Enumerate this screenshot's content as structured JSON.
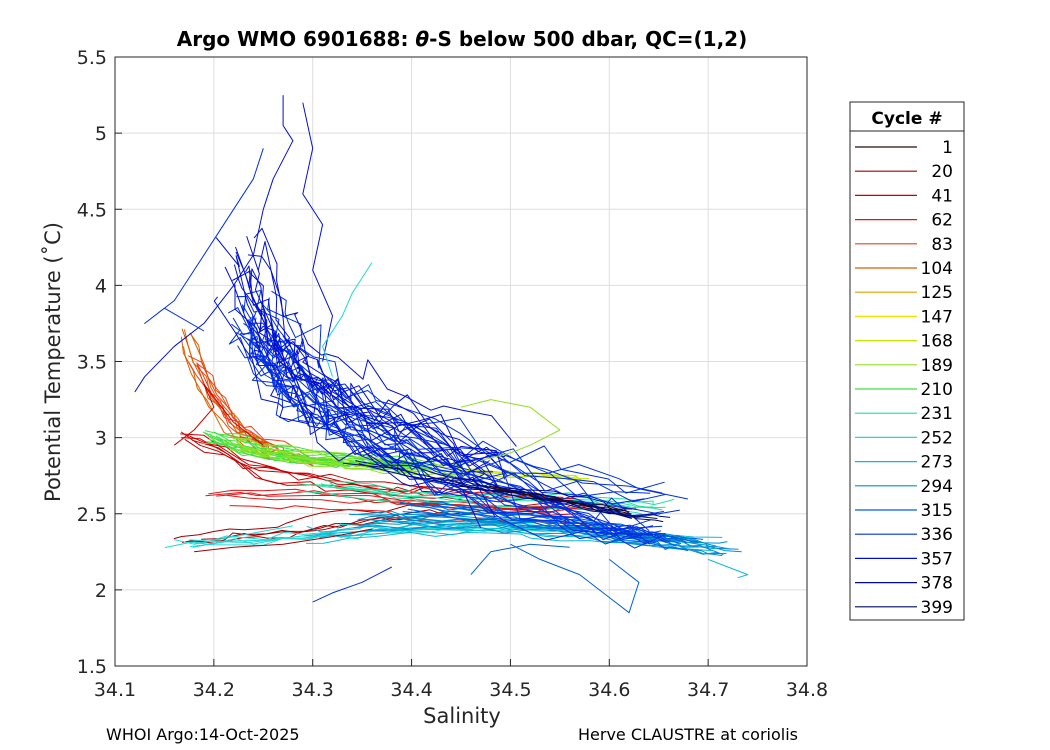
{
  "chart_data": {
    "type": "line",
    "title_prefix": "Argo WMO 6901688: ",
    "title_theta": "θ",
    "title_suffix": "-S below 500 dbar,  QC=(1,2)",
    "xlabel": "Salinity",
    "ylabel": "Potential Temperature (˚C)",
    "xlim": [
      34.1,
      34.8
    ],
    "ylim": [
      1.5,
      5.5
    ],
    "x_ticks": [
      "34.1",
      "34.2",
      "34.3",
      "34.4",
      "34.5",
      "34.6",
      "34.7",
      "34.8"
    ],
    "y_ticks": [
      "1.5",
      "2",
      "2.5",
      "3",
      "3.5",
      "4",
      "4.5",
      "5",
      "5.5"
    ],
    "grid": true,
    "legend": {
      "title": "Cycle #",
      "placement": "right-outside",
      "entries": [
        {
          "label": "1",
          "color": "#2a0a0a"
        },
        {
          "label": "20",
          "color": "#a00000"
        },
        {
          "label": "41",
          "color": "#c80000"
        },
        {
          "label": "62",
          "color": "#e01818"
        },
        {
          "label": "83",
          "color": "#e84020"
        },
        {
          "label": "104",
          "color": "#d86000"
        },
        {
          "label": "125",
          "color": "#e0a000"
        },
        {
          "label": "147",
          "color": "#f0e000"
        },
        {
          "label": "168",
          "color": "#c8e800"
        },
        {
          "label": "189",
          "color": "#90e020"
        },
        {
          "label": "210",
          "color": "#40e040"
        },
        {
          "label": "231",
          "color": "#20e0a0"
        },
        {
          "label": "252",
          "color": "#20d8d8"
        },
        {
          "label": "273",
          "color": "#10b8d8"
        },
        {
          "label": "294",
          "color": "#0090d0"
        },
        {
          "label": "315",
          "color": "#0060d8"
        },
        {
          "label": "336",
          "color": "#0030e0"
        },
        {
          "label": "357",
          "color": "#0010d0"
        },
        {
          "label": "378",
          "color": "#000890"
        },
        {
          "label": "399",
          "color": "#000a60"
        }
      ]
    },
    "groups": [
      {
        "color": "#d86000",
        "cx": [
          34.17,
          34.2,
          34.23,
          34.26
        ],
        "cy": [
          3.65,
          3.2,
          3.0,
          2.9
        ],
        "sx": 0.008,
        "sy": 0.07,
        "n": 6,
        "pts": 14
      },
      {
        "color": "#e84020",
        "cx": [
          34.18,
          34.22,
          34.26,
          34.3
        ],
        "cy": [
          3.5,
          3.1,
          2.95,
          2.85
        ],
        "sx": 0.01,
        "sy": 0.08,
        "n": 5,
        "pts": 14
      },
      {
        "color": "#c80000",
        "cx": [
          34.16,
          34.25,
          34.35,
          34.45,
          34.55
        ],
        "cy": [
          3.0,
          2.75,
          2.65,
          2.6,
          2.55
        ],
        "sx": 0.02,
        "sy": 0.08,
        "n": 6,
        "pts": 18
      },
      {
        "color": "#a00000",
        "cx": [
          34.17,
          34.25,
          34.35,
          34.45
        ],
        "cy": [
          2.3,
          2.35,
          2.45,
          2.5
        ],
        "sx": 0.02,
        "sy": 0.06,
        "n": 4,
        "pts": 16
      },
      {
        "color": "#e01818",
        "cx": [
          34.2,
          34.3,
          34.4,
          34.5,
          34.58
        ],
        "cy": [
          2.6,
          2.6,
          2.55,
          2.5,
          2.5
        ],
        "sx": 0.02,
        "sy": 0.06,
        "n": 5,
        "pts": 16
      },
      {
        "color": "#40e040",
        "cx": [
          34.2,
          34.26,
          34.32,
          34.38,
          34.42
        ],
        "cy": [
          3.0,
          2.88,
          2.85,
          2.82,
          2.8
        ],
        "sx": 0.014,
        "sy": 0.05,
        "n": 14,
        "pts": 18
      },
      {
        "color": "#90e020",
        "cx": [
          34.22,
          34.3,
          34.38,
          34.45
        ],
        "cy": [
          2.95,
          2.85,
          2.8,
          2.75
        ],
        "sx": 0.014,
        "sy": 0.05,
        "n": 8,
        "pts": 18
      },
      {
        "color": "#c8e800",
        "cx": [
          34.45,
          34.5,
          34.55,
          34.58
        ],
        "cy": [
          2.8,
          2.75,
          2.75,
          2.72
        ],
        "sx": 0.012,
        "sy": 0.04,
        "n": 4,
        "pts": 14
      },
      {
        "color": "#20e0a0",
        "cx": [
          34.3,
          34.4,
          34.5,
          34.6,
          34.65
        ],
        "cy": [
          2.7,
          2.62,
          2.6,
          2.58,
          2.55
        ],
        "sx": 0.02,
        "sy": 0.05,
        "n": 6,
        "pts": 18
      },
      {
        "color": "#20d8d8",
        "cx": [
          34.17,
          34.27,
          34.37,
          34.47,
          34.57
        ],
        "cy": [
          2.3,
          2.35,
          2.4,
          2.42,
          2.4
        ],
        "sx": 0.02,
        "sy": 0.06,
        "n": 5,
        "pts": 18
      },
      {
        "color": "#10b8d8",
        "cx": [
          34.3,
          34.4,
          34.5,
          34.6,
          34.7
        ],
        "cy": [
          2.35,
          2.4,
          2.4,
          2.35,
          2.3
        ],
        "sx": 0.02,
        "sy": 0.05,
        "n": 6,
        "pts": 18
      },
      {
        "color": "#0090d0",
        "cx": [
          34.35,
          34.45,
          34.55,
          34.65,
          34.72
        ],
        "cy": [
          2.45,
          2.45,
          2.4,
          2.32,
          2.25
        ],
        "sx": 0.018,
        "sy": 0.05,
        "n": 10,
        "pts": 18
      },
      {
        "color": "#0060d8",
        "cx": [
          34.4,
          34.5,
          34.6,
          34.68
        ],
        "cy": [
          2.55,
          2.48,
          2.4,
          2.3
        ],
        "sx": 0.016,
        "sy": 0.05,
        "n": 9,
        "pts": 18
      },
      {
        "color": "#0030e0",
        "cx": [
          34.24,
          34.26,
          34.28,
          34.32,
          34.38,
          34.45,
          34.55,
          34.65
        ],
        "cy": [
          3.8,
          3.6,
          3.4,
          3.2,
          3.0,
          2.8,
          2.6,
          2.45
        ],
        "sx": 0.025,
        "sy": 0.22,
        "n": 26,
        "pts": 22
      },
      {
        "color": "#0010d0",
        "cx": [
          34.22,
          34.25,
          34.28,
          34.33,
          34.4,
          34.48
        ],
        "cy": [
          4.2,
          3.7,
          3.4,
          3.2,
          3.0,
          2.8
        ],
        "sx": 0.02,
        "sy": 0.3,
        "n": 14,
        "pts": 20
      },
      {
        "color": "#000890",
        "cx": [
          34.35,
          34.45,
          34.55,
          34.62
        ],
        "cy": [
          2.85,
          2.7,
          2.6,
          2.5
        ],
        "sx": 0.015,
        "sy": 0.05,
        "n": 4,
        "pts": 14
      },
      {
        "color": "#000a60",
        "cx": [
          34.45,
          34.52,
          34.6,
          34.66
        ],
        "cy": [
          2.7,
          2.62,
          2.52,
          2.45
        ],
        "sx": 0.012,
        "sy": 0.04,
        "n": 3,
        "pts": 14
      },
      {
        "color": "#2a0a0a",
        "cx": [
          34.48,
          34.55,
          34.62
        ],
        "cy": [
          2.65,
          2.58,
          2.5
        ],
        "sx": 0.01,
        "sy": 0.03,
        "n": 2,
        "pts": 12
      }
    ],
    "traces": [
      {
        "color": "#0010d0",
        "x": [
          34.27,
          34.27,
          34.28,
          34.26,
          34.25,
          34.24,
          34.22,
          34.19,
          34.16,
          34.13,
          34.12
        ],
        "y": [
          5.25,
          5.05,
          4.95,
          4.7,
          4.5,
          4.2,
          4.0,
          3.75,
          3.6,
          3.4,
          3.3
        ]
      },
      {
        "color": "#0010d0",
        "x": [
          34.29,
          34.3,
          34.29,
          34.31,
          34.3,
          34.32,
          34.31
        ],
        "y": [
          5.2,
          4.9,
          4.6,
          4.4,
          4.1,
          3.8,
          3.5
        ]
      },
      {
        "color": "#0030e0",
        "x": [
          34.25,
          34.24,
          34.2,
          34.16,
          34.13,
          34.15,
          34.19
        ],
        "y": [
          4.9,
          4.7,
          4.3,
          3.9,
          3.75,
          3.85,
          3.7
        ]
      },
      {
        "color": "#20d8d8",
        "x": [
          34.36,
          34.34,
          34.33,
          34.31,
          34.32
        ],
        "y": [
          4.15,
          3.95,
          3.8,
          3.6,
          3.4
        ]
      },
      {
        "color": "#90e020",
        "x": [
          34.45,
          34.48,
          34.52,
          34.55,
          34.52,
          34.5,
          34.47
        ],
        "y": [
          3.2,
          3.25,
          3.2,
          3.05,
          2.95,
          2.9,
          2.85
        ]
      },
      {
        "color": "#0060d8",
        "x": [
          34.5,
          34.53,
          34.57,
          34.6,
          34.62,
          34.63,
          34.6
        ],
        "y": [
          2.3,
          2.2,
          2.1,
          1.95,
          1.85,
          2.05,
          2.2
        ]
      },
      {
        "color": "#0060d8",
        "x": [
          34.46,
          34.48,
          34.52,
          34.56
        ],
        "y": [
          2.1,
          2.25,
          2.3,
          2.28
        ]
      },
      {
        "color": "#0030e0",
        "x": [
          34.3,
          34.32,
          34.35,
          34.38
        ],
        "y": [
          1.92,
          1.98,
          2.05,
          2.15
        ]
      },
      {
        "color": "#10b8d8",
        "x": [
          34.7,
          34.72,
          34.74,
          34.73
        ],
        "y": [
          2.2,
          2.15,
          2.1,
          2.08
        ]
      },
      {
        "color": "#c80000",
        "x": [
          34.16,
          34.18,
          34.2,
          34.19,
          34.22,
          34.25
        ],
        "y": [
          2.95,
          3.05,
          3.2,
          3.35,
          3.1,
          2.95
        ]
      },
      {
        "color": "#a00000",
        "x": [
          34.18,
          34.22,
          34.27,
          34.32,
          34.36
        ],
        "y": [
          2.25,
          2.28,
          2.3,
          2.35,
          2.4
        ]
      },
      {
        "color": "#20d8d8",
        "x": [
          34.16,
          34.18,
          34.22,
          34.28
        ],
        "y": [
          2.33,
          2.3,
          2.35,
          2.42
        ]
      }
    ],
    "footer_left": "WHOI Argo:14-Oct-2025",
    "footer_right": "Herve CLAUSTRE at coriolis"
  }
}
